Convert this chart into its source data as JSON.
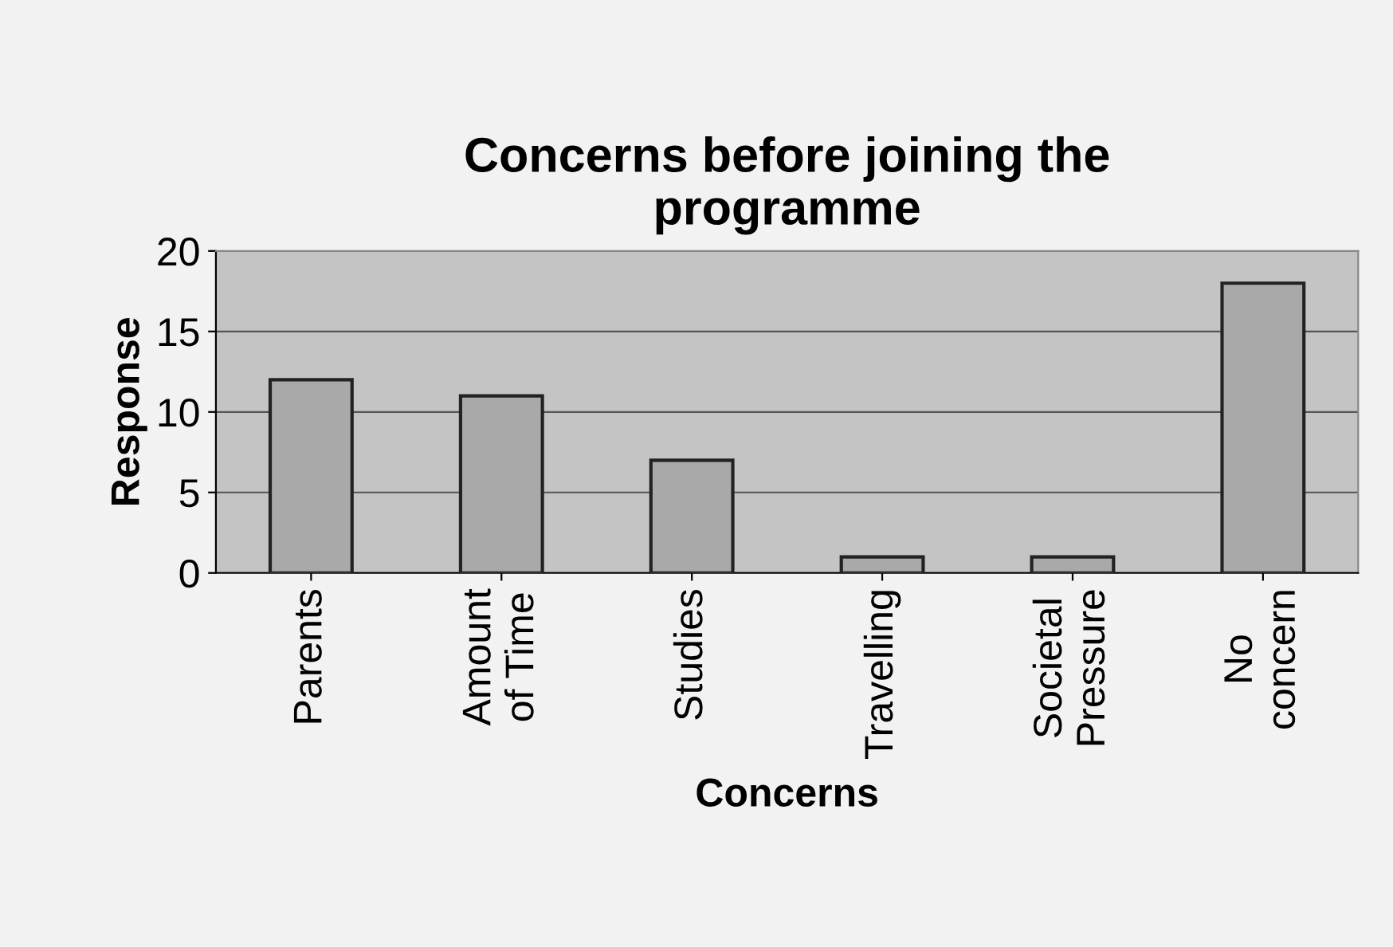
{
  "chart_data": {
    "type": "bar",
    "title": "Concerns before joining the\nprogramme",
    "xlabel": "Concerns",
    "ylabel": "Response",
    "categories": [
      "Parents",
      "Amount\nof Time",
      "Studies",
      "Travelling",
      "Societal\nPressure",
      "No\nconcern"
    ],
    "values": [
      12,
      11,
      7,
      1,
      1,
      18
    ],
    "color": "#a9a9a9",
    "ylim": [
      0,
      20
    ],
    "yticks": [
      0,
      5,
      10,
      15,
      20
    ],
    "grid": "y",
    "legend": false
  }
}
